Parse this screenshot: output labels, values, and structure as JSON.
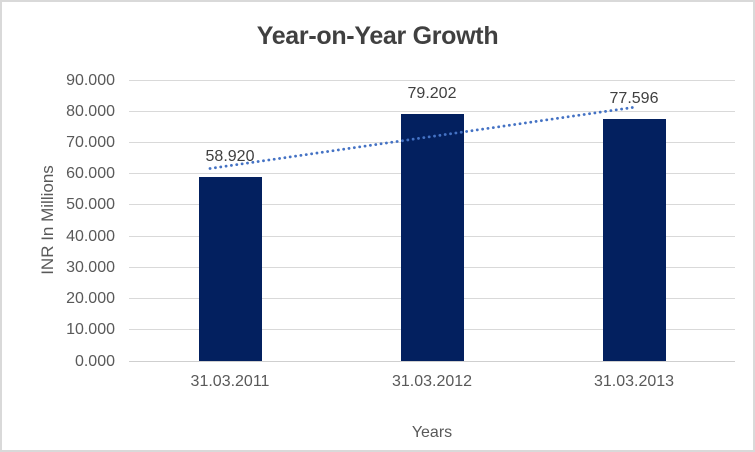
{
  "chart_data": {
    "type": "bar",
    "title": "Year-on-Year Growth",
    "xlabel": "Years",
    "ylabel": "INR In Millions",
    "categories": [
      "31.03.2011",
      "31.03.2012",
      "31.03.2013"
    ],
    "values": [
      58.92,
      79.202,
      77.596
    ],
    "data_labels": [
      "58.920",
      "79.202",
      "77.596"
    ],
    "y_tick_values": [
      90,
      80,
      70,
      60,
      50,
      40,
      30,
      20,
      10,
      0
    ],
    "y_tick_labels": [
      "90.000",
      "80.000",
      "70.000",
      "60.000",
      "50.000",
      "40.000",
      "30.000",
      "20.000",
      "10.000",
      "0.000"
    ],
    "ylim": [
      0,
      90
    ],
    "grid": true,
    "legend": "none",
    "trendline": {
      "type": "linear",
      "style": "dotted"
    }
  },
  "colors": {
    "bar": "#03205f",
    "trendline": "#4472c4",
    "gridline": "#d9d9d9",
    "axis_line": "#cfcfcf",
    "border": "#d9d9d9",
    "title_text": "#404040",
    "data_label_text": "#404040",
    "axis_text": "#595959"
  }
}
